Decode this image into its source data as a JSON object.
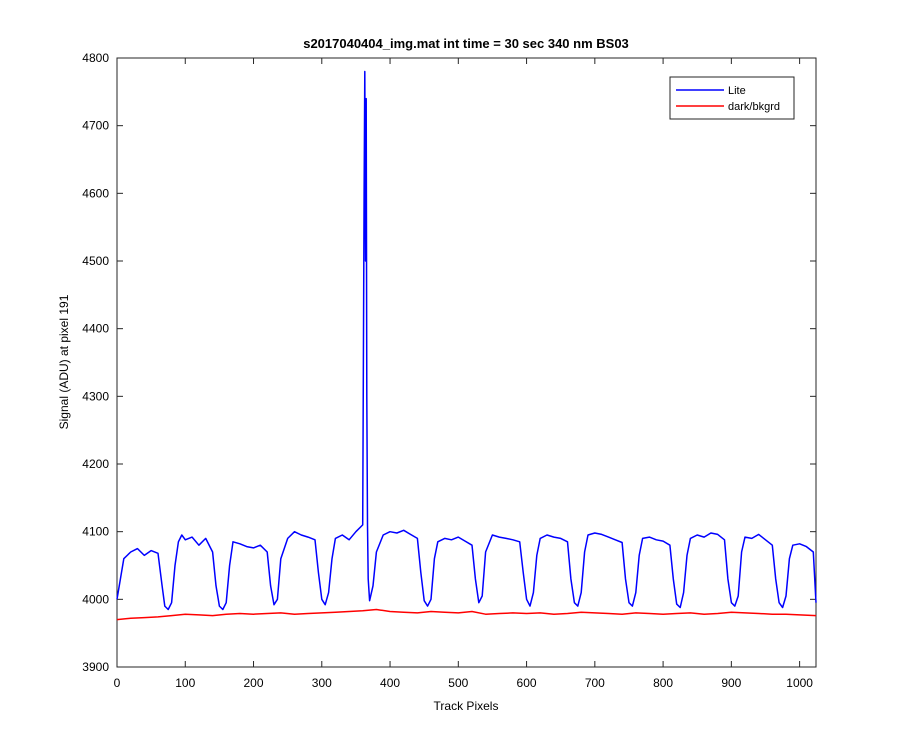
{
  "chart_data": {
    "type": "line",
    "title": "s2017040404_img.mat int time = 30 sec  340 nm BS03",
    "xlabel": "Track Pixels",
    "ylabel": "Signal (ADU) at pixel 191",
    "xlim": [
      0,
      1024
    ],
    "ylim": [
      3900,
      4800
    ],
    "xticks": [
      0,
      100,
      200,
      300,
      400,
      500,
      600,
      700,
      800,
      900,
      1000
    ],
    "yticks": [
      3900,
      4000,
      4100,
      4200,
      4300,
      4400,
      4500,
      4600,
      4700,
      4800
    ],
    "grid": false,
    "legend_position": "top-right",
    "series": [
      {
        "name": "Lite",
        "color": "#0000ff",
        "x": [
          0,
          5,
          10,
          20,
          30,
          40,
          50,
          60,
          66,
          70,
          75,
          80,
          85,
          90,
          95,
          100,
          110,
          120,
          130,
          140,
          145,
          150,
          155,
          160,
          165,
          170,
          180,
          190,
          200,
          210,
          220,
          225,
          230,
          235,
          240,
          250,
          260,
          270,
          280,
          290,
          295,
          300,
          305,
          310,
          315,
          320,
          330,
          340,
          350,
          360,
          362,
          363,
          364,
          365,
          366,
          367,
          368,
          370,
          375,
          380,
          390,
          400,
          410,
          420,
          430,
          440,
          445,
          450,
          455,
          460,
          465,
          470,
          480,
          490,
          500,
          510,
          520,
          525,
          530,
          535,
          540,
          550,
          560,
          570,
          580,
          590,
          595,
          600,
          605,
          610,
          615,
          620,
          630,
          640,
          650,
          660,
          665,
          670,
          675,
          680,
          685,
          690,
          700,
          710,
          720,
          730,
          740,
          745,
          750,
          755,
          760,
          765,
          770,
          780,
          790,
          800,
          810,
          815,
          820,
          825,
          830,
          835,
          840,
          850,
          860,
          870,
          880,
          890,
          895,
          900,
          905,
          910,
          915,
          920,
          930,
          940,
          950,
          960,
          965,
          970,
          975,
          980,
          985,
          990,
          1000,
          1010,
          1020,
          1024
        ],
        "y": [
          4000,
          4030,
          4060,
          4070,
          4075,
          4065,
          4072,
          4068,
          4020,
          3990,
          3985,
          3995,
          4050,
          4085,
          4095,
          4088,
          4092,
          4080,
          4090,
          4070,
          4020,
          3990,
          3985,
          3995,
          4050,
          4085,
          4082,
          4078,
          4076,
          4080,
          4070,
          4020,
          3992,
          4000,
          4060,
          4090,
          4100,
          4095,
          4092,
          4088,
          4040,
          4000,
          3992,
          4010,
          4060,
          4090,
          4095,
          4088,
          4100,
          4110,
          4600,
          4780,
          4500,
          4740,
          4300,
          4110,
          4030,
          3998,
          4020,
          4070,
          4095,
          4100,
          4098,
          4102,
          4096,
          4090,
          4040,
          3998,
          3990,
          4000,
          4060,
          4085,
          4090,
          4088,
          4092,
          4086,
          4080,
          4030,
          3995,
          4005,
          4070,
          4095,
          4092,
          4090,
          4088,
          4085,
          4040,
          4000,
          3990,
          4010,
          4065,
          4090,
          4095,
          4092,
          4090,
          4085,
          4030,
          3995,
          3990,
          4010,
          4070,
          4095,
          4098,
          4096,
          4092,
          4088,
          4084,
          4030,
          3995,
          3990,
          4010,
          4065,
          4090,
          4092,
          4088,
          4086,
          4080,
          4030,
          3993,
          3988,
          4010,
          4065,
          4090,
          4095,
          4092,
          4098,
          4096,
          4088,
          4030,
          3995,
          3990,
          4005,
          4070,
          4092,
          4090,
          4096,
          4088,
          4080,
          4030,
          3995,
          3988,
          4005,
          4060,
          4080,
          4082,
          4078,
          4070,
          3995
        ]
      },
      {
        "name": "dark/bkgrd",
        "color": "#ff0000",
        "x": [
          0,
          20,
          40,
          60,
          80,
          100,
          120,
          140,
          160,
          180,
          200,
          220,
          240,
          260,
          280,
          300,
          320,
          340,
          360,
          380,
          400,
          420,
          440,
          460,
          480,
          500,
          520,
          540,
          560,
          580,
          600,
          620,
          640,
          660,
          680,
          700,
          720,
          740,
          760,
          780,
          800,
          820,
          840,
          860,
          880,
          900,
          920,
          940,
          960,
          980,
          1000,
          1024
        ],
        "y": [
          3970,
          3972,
          3973,
          3974,
          3976,
          3978,
          3977,
          3976,
          3978,
          3979,
          3978,
          3979,
          3980,
          3978,
          3979,
          3980,
          3981,
          3982,
          3983,
          3985,
          3982,
          3981,
          3980,
          3982,
          3981,
          3980,
          3982,
          3978,
          3979,
          3980,
          3979,
          3980,
          3978,
          3979,
          3981,
          3980,
          3979,
          3978,
          3980,
          3979,
          3978,
          3979,
          3980,
          3978,
          3979,
          3981,
          3980,
          3979,
          3978,
          3978,
          3977,
          3976
        ]
      }
    ]
  }
}
